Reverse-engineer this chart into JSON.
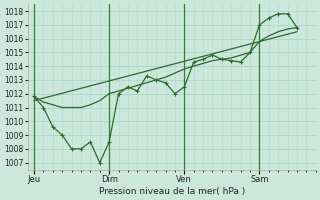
{
  "bg_color": "#cce8dc",
  "plot_bg_color": "#cce8dc",
  "grid_color": "#b0d8c8",
  "line_color": "#2d6a2d",
  "xlabel": "Pression niveau de la mer( hPa )",
  "ylim": [
    1006.5,
    1018.5
  ],
  "yticks": [
    1007,
    1008,
    1009,
    1010,
    1011,
    1012,
    1013,
    1014,
    1015,
    1016,
    1017,
    1018
  ],
  "xtick_labels": [
    "Jeu",
    "Dim",
    "Ven",
    "Sam"
  ],
  "xtick_positions": [
    0,
    24,
    48,
    72
  ],
  "vline_positions": [
    0,
    24,
    48,
    72
  ],
  "xlim": [
    -2,
    90
  ],
  "series1_x": [
    0,
    3,
    6,
    9,
    12,
    15,
    18,
    21,
    24,
    27,
    30,
    33,
    36,
    39,
    42,
    45,
    48,
    51,
    54,
    57,
    60,
    63,
    66,
    69,
    72,
    75,
    78,
    81,
    84
  ],
  "series1_y": [
    1011.8,
    1011.0,
    1009.6,
    1009.0,
    1008.0,
    1008.0,
    1008.5,
    1007.0,
    1008.5,
    1012.0,
    1012.5,
    1012.2,
    1013.3,
    1013.0,
    1012.8,
    1012.0,
    1012.5,
    1014.3,
    1014.5,
    1014.8,
    1014.5,
    1014.4,
    1014.3,
    1015.0,
    1017.0,
    1017.5,
    1017.8,
    1017.8,
    1016.8
  ],
  "series2_x": [
    0,
    3,
    6,
    9,
    12,
    15,
    18,
    21,
    24,
    27,
    30,
    33,
    36,
    39,
    42,
    45,
    48,
    51,
    54,
    57,
    60,
    63,
    66,
    69,
    72,
    75,
    78,
    81,
    84
  ],
  "series2_y": [
    1011.8,
    1011.4,
    1011.2,
    1011.0,
    1011.0,
    1011.0,
    1011.2,
    1011.5,
    1012.0,
    1012.2,
    1012.4,
    1012.6,
    1012.8,
    1013.0,
    1013.2,
    1013.5,
    1013.8,
    1014.0,
    1014.2,
    1014.4,
    1014.5,
    1014.6,
    1014.8,
    1015.0,
    1015.8,
    1016.2,
    1016.5,
    1016.7,
    1016.8
  ],
  "series3_x": [
    0,
    84
  ],
  "series3_y": [
    1011.5,
    1016.5
  ]
}
